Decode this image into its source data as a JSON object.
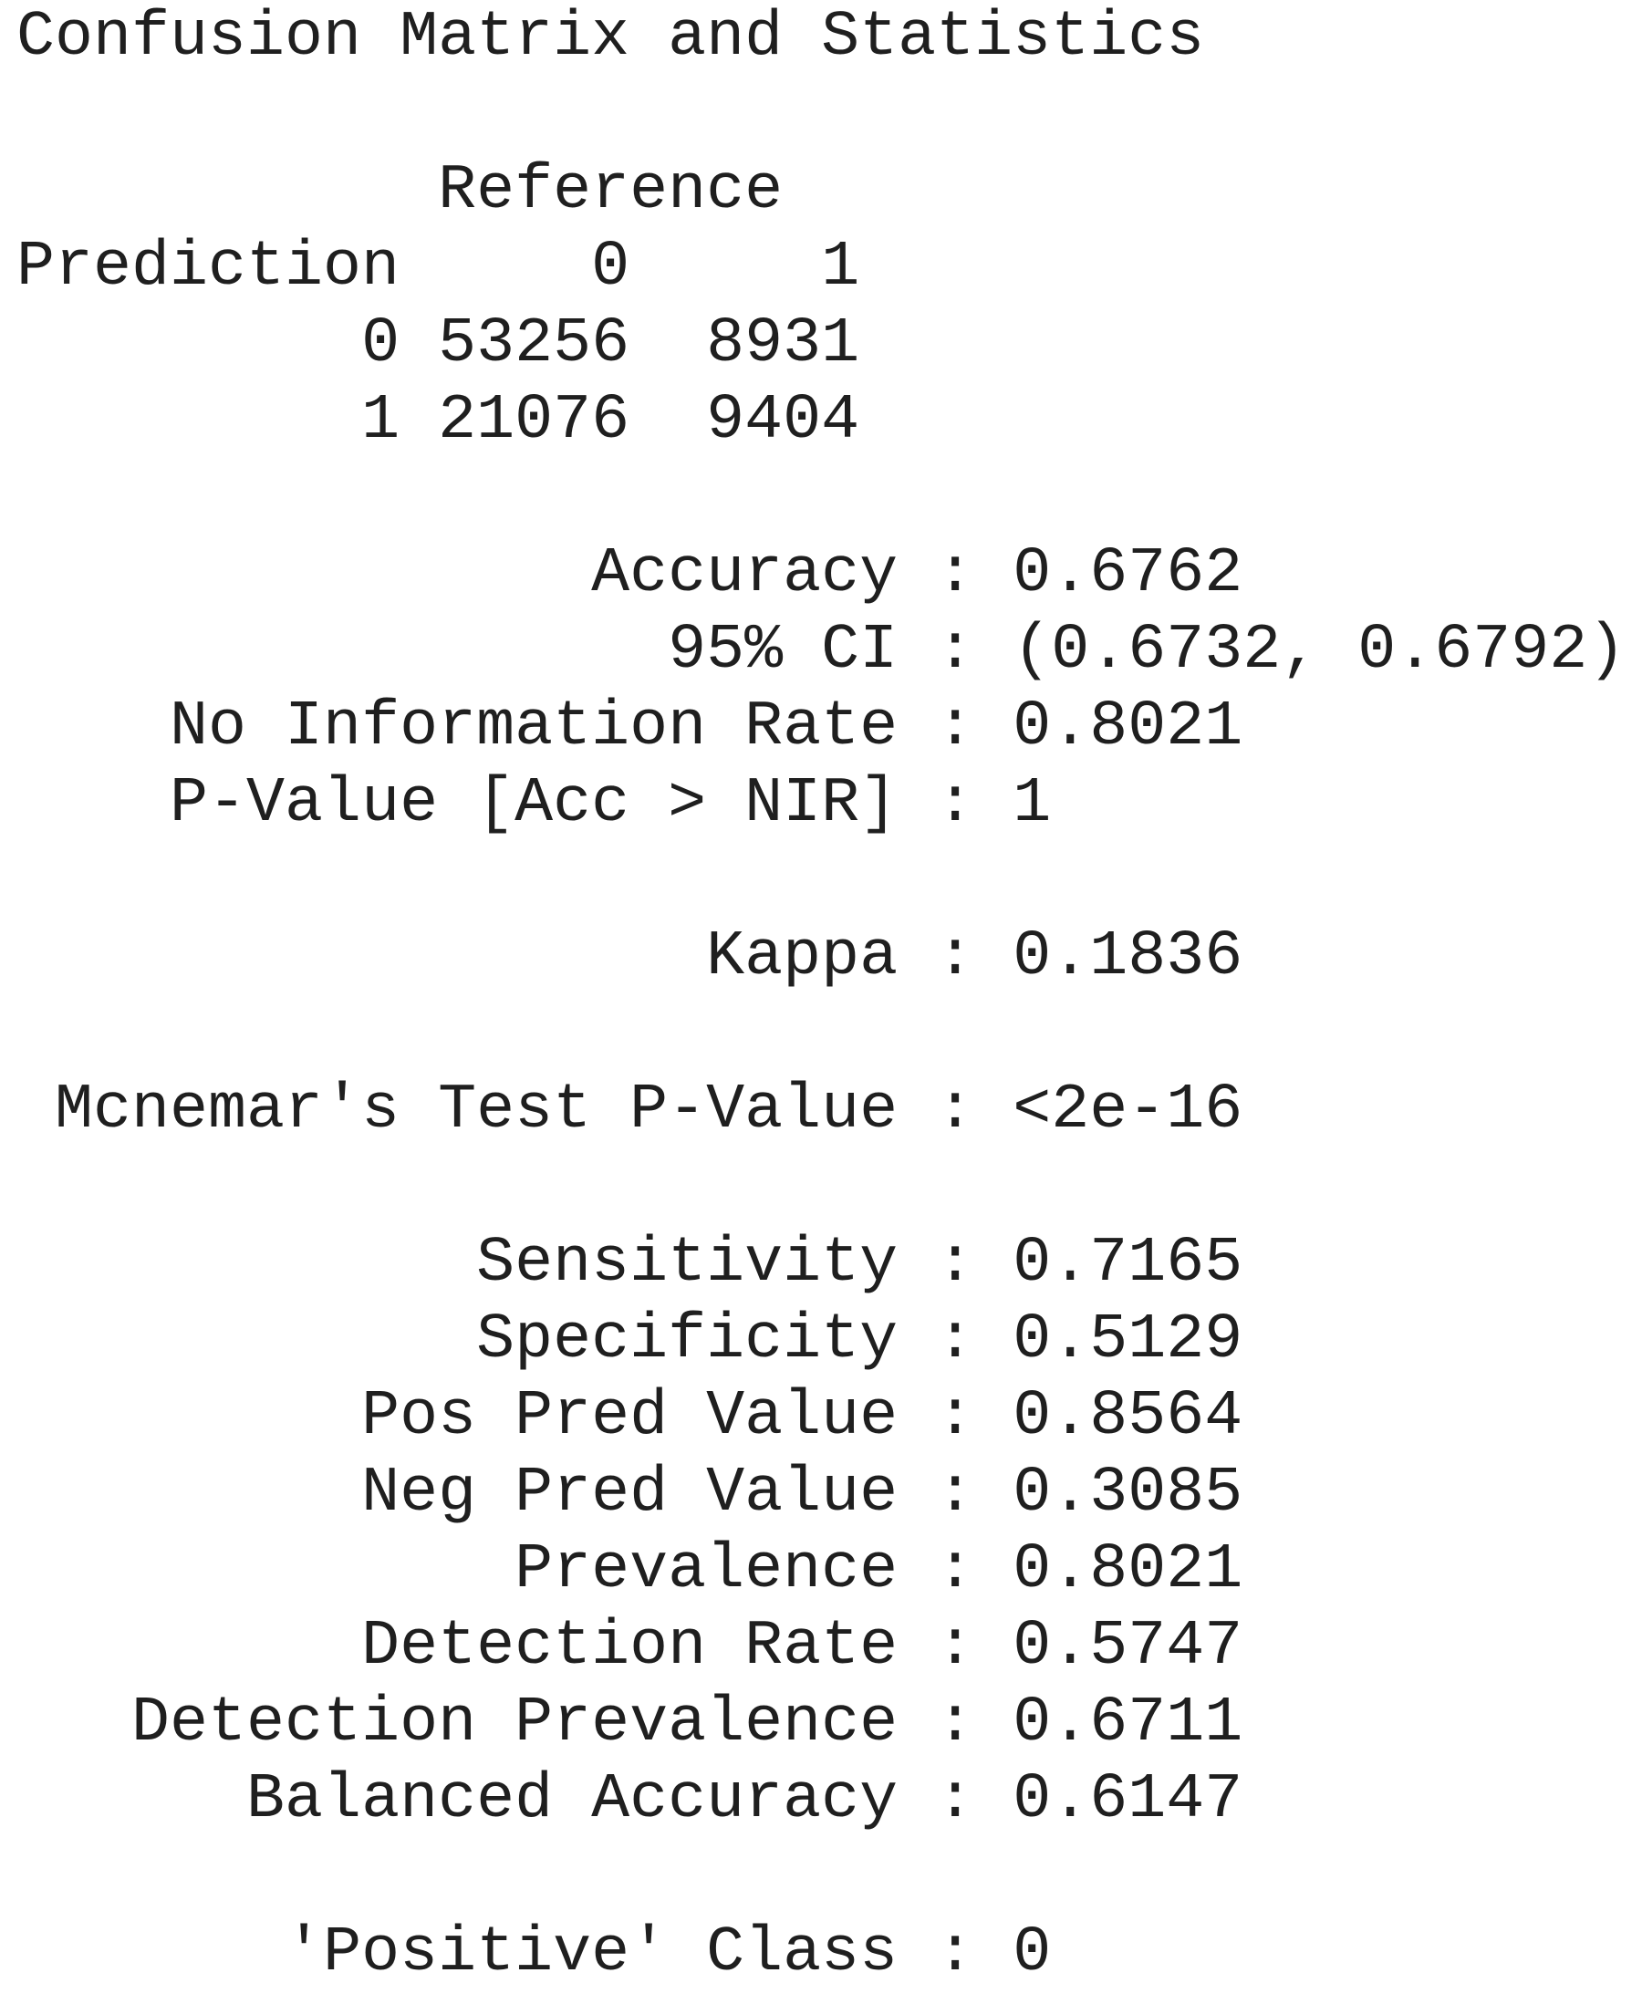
{
  "title": "Confusion Matrix and Statistics",
  "matrix": {
    "reference_label": "Reference",
    "prediction_label": "Prediction",
    "col_headers": [
      "0",
      "1"
    ],
    "rows": [
      {
        "label": "0",
        "cells": [
          "53256",
          "8931"
        ]
      },
      {
        "label": "1",
        "cells": [
          "21076",
          "9404"
        ]
      }
    ]
  },
  "stats": [
    {
      "label": "Accuracy",
      "value": "0.6762"
    },
    {
      "label": "95% CI",
      "value": "(0.6732, 0.6792)"
    },
    {
      "label": "No Information Rate",
      "value": "0.8021"
    },
    {
      "label": "P-Value [Acc > NIR]",
      "value": "1"
    },
    {
      "label": "Kappa",
      "value": "0.1836"
    },
    {
      "label": "Mcnemar's Test P-Value",
      "value": "<2e-16"
    },
    {
      "label": "Sensitivity",
      "value": "0.7165"
    },
    {
      "label": "Specificity",
      "value": "0.5129"
    },
    {
      "label": "Pos Pred Value",
      "value": "0.8564"
    },
    {
      "label": "Neg Pred Value",
      "value": "0.3085"
    },
    {
      "label": "Prevalence",
      "value": "0.8021"
    },
    {
      "label": "Detection Rate",
      "value": "0.5747"
    },
    {
      "label": "Detection Prevalence",
      "value": "0.6711"
    },
    {
      "label": "Balanced Accuracy",
      "value": "0.6147"
    },
    {
      "label": "'Positive' Class",
      "value": "0"
    }
  ]
}
